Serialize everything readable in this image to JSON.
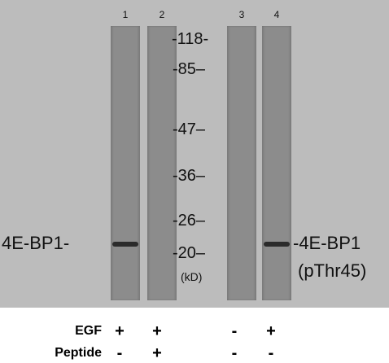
{
  "lanes": [
    "1",
    "2",
    "3",
    "4"
  ],
  "markers": [
    "-118-",
    "-85–",
    "-47–",
    "-36–",
    "-26–",
    "-20–"
  ],
  "unit": "(kD)",
  "left_label": "4E-BP1-",
  "right_label_line1": "-4E-BP1",
  "right_label_line2": "(pThr45)",
  "rows": [
    {
      "label": "EGF",
      "signs": [
        "+",
        "+",
        "-",
        "+"
      ]
    },
    {
      "label": "Peptide",
      "signs": [
        "-",
        "+",
        "-",
        "-"
      ]
    }
  ],
  "colors": {
    "membrane": "#bcbcbc",
    "lane": "#8c8c8c",
    "band": "#2b2b2b"
  }
}
